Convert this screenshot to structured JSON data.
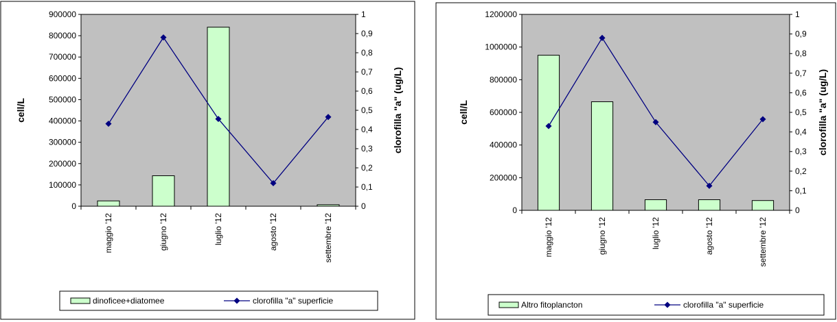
{
  "chart_data": [
    {
      "type": "bar",
      "categories": [
        "maggio '12",
        "giugno '12",
        "luglio '12",
        "agosto '12",
        "settembre '12"
      ],
      "series": [
        {
          "name": "dinoficee+diatomee",
          "type": "bar",
          "axis": "left",
          "values": [
            25000,
            143000,
            840000,
            0,
            7000
          ]
        },
        {
          "name": "clorofilla \"a\" superficie",
          "type": "line",
          "axis": "right",
          "values": [
            0.43,
            0.88,
            0.455,
            0.12,
            0.465
          ]
        }
      ],
      "ylabel": "cell/L",
      "y2label": "clorofilla \"a\" (ug/L)",
      "ylim": [
        0,
        900000
      ],
      "y2lim": [
        0,
        1
      ],
      "yticks": [
        "0",
        "100000",
        "200000",
        "300000",
        "400000",
        "500000",
        "600000",
        "700000",
        "800000",
        "900000"
      ],
      "y2ticks": [
        "0",
        "0,1",
        "0,2",
        "0,3",
        "0,4",
        "0,5",
        "0,6",
        "0,7",
        "0,8",
        "0,9",
        "1"
      ],
      "legend_position": "bottom",
      "colors": {
        "plot_bg": "#C0C0C0",
        "bar": "#CCFFCC",
        "line": "#000080"
      }
    },
    {
      "type": "bar",
      "categories": [
        "maggio '12",
        "giugno '12",
        "luglio '12",
        "agosto '12",
        "settembre '12"
      ],
      "series": [
        {
          "name": "Altro fitoplancton",
          "type": "bar",
          "axis": "left",
          "values": [
            950000,
            665000,
            65000,
            65000,
            60000
          ]
        },
        {
          "name": "clorofilla \"a\" superficie",
          "type": "line",
          "axis": "right",
          "values": [
            0.43,
            0.88,
            0.45,
            0.125,
            0.465
          ]
        }
      ],
      "ylabel": "cell/L",
      "y2label": "clorofilla \"a\" (ug/L)",
      "ylim": [
        0,
        1200000
      ],
      "y2lim": [
        0,
        1
      ],
      "yticks": [
        "0",
        "200000",
        "400000",
        "600000",
        "800000",
        "1000000",
        "1200000"
      ],
      "y2ticks": [
        "0",
        "0,1",
        "0,2",
        "0,3",
        "0,4",
        "0,5",
        "0,6",
        "0,7",
        "0,8",
        "0,9",
        "1"
      ],
      "legend_position": "bottom",
      "colors": {
        "plot_bg": "#C0C0C0",
        "bar": "#CCFFCC",
        "line": "#000080"
      }
    }
  ]
}
